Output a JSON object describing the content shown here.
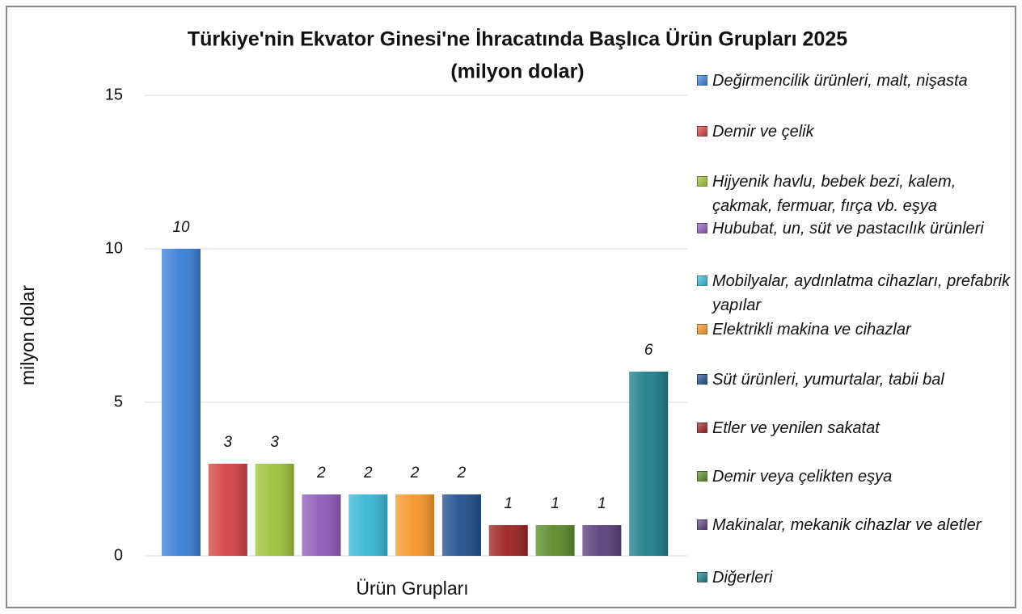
{
  "chart_data": {
    "type": "bar",
    "title": "Türkiye'nin Ekvator Ginesi'ne İhracatında Başlıca Ürün Grupları 2025",
    "subtitle": "(milyon dolar)",
    "x_label": "Ürün Grupları",
    "y_label": "milyon dolar",
    "categories": [
      null
    ],
    "series": [
      {
        "name": "Değirmencilik ürünleri, malt, nişasta",
        "color": "#3b7fd6",
        "values": [
          10
        ]
      },
      {
        "name": "Demir ve çelik",
        "color": "#d24343",
        "values": [
          3
        ]
      },
      {
        "name": "Hijyenik havlu, bebek bezi, kalem, çakmak, fermuar, fırça vb. eşya",
        "color": "#9cc23a",
        "values": [
          3
        ]
      },
      {
        "name": "Hububat, un, süt ve pastacılık ürünleri",
        "color": "#8e5cb8",
        "values": [
          2
        ]
      },
      {
        "name": "Mobilyalar, aydınlatma cihazları, prefabrik yapılar",
        "color": "#36b7d3",
        "values": [
          2
        ]
      },
      {
        "name": "Elektrikli makina ve cihazlar",
        "color": "#f7972a",
        "values": [
          2
        ]
      },
      {
        "name": "Süt ürünleri, yumurtalar, tabii bal",
        "color": "#214f8c",
        "values": [
          2
        ]
      },
      {
        "name": "Etler ve yenilen sakatat",
        "color": "#9c2222",
        "values": [
          1
        ]
      },
      {
        "name": "Demir veya çelikten eşya",
        "color": "#5b8a2a",
        "values": [
          1
        ]
      },
      {
        "name": "Makinalar, mekanik cihazlar ve aletler",
        "color": "#5a3e7c",
        "values": [
          1
        ]
      },
      {
        "name": "Diğerleri",
        "color": "#1e7d8c",
        "values": [
          6
        ]
      }
    ],
    "ylim": [
      0,
      15
    ],
    "yticks": [
      0,
      5,
      10,
      15
    ],
    "grid": true,
    "legend": "right"
  }
}
